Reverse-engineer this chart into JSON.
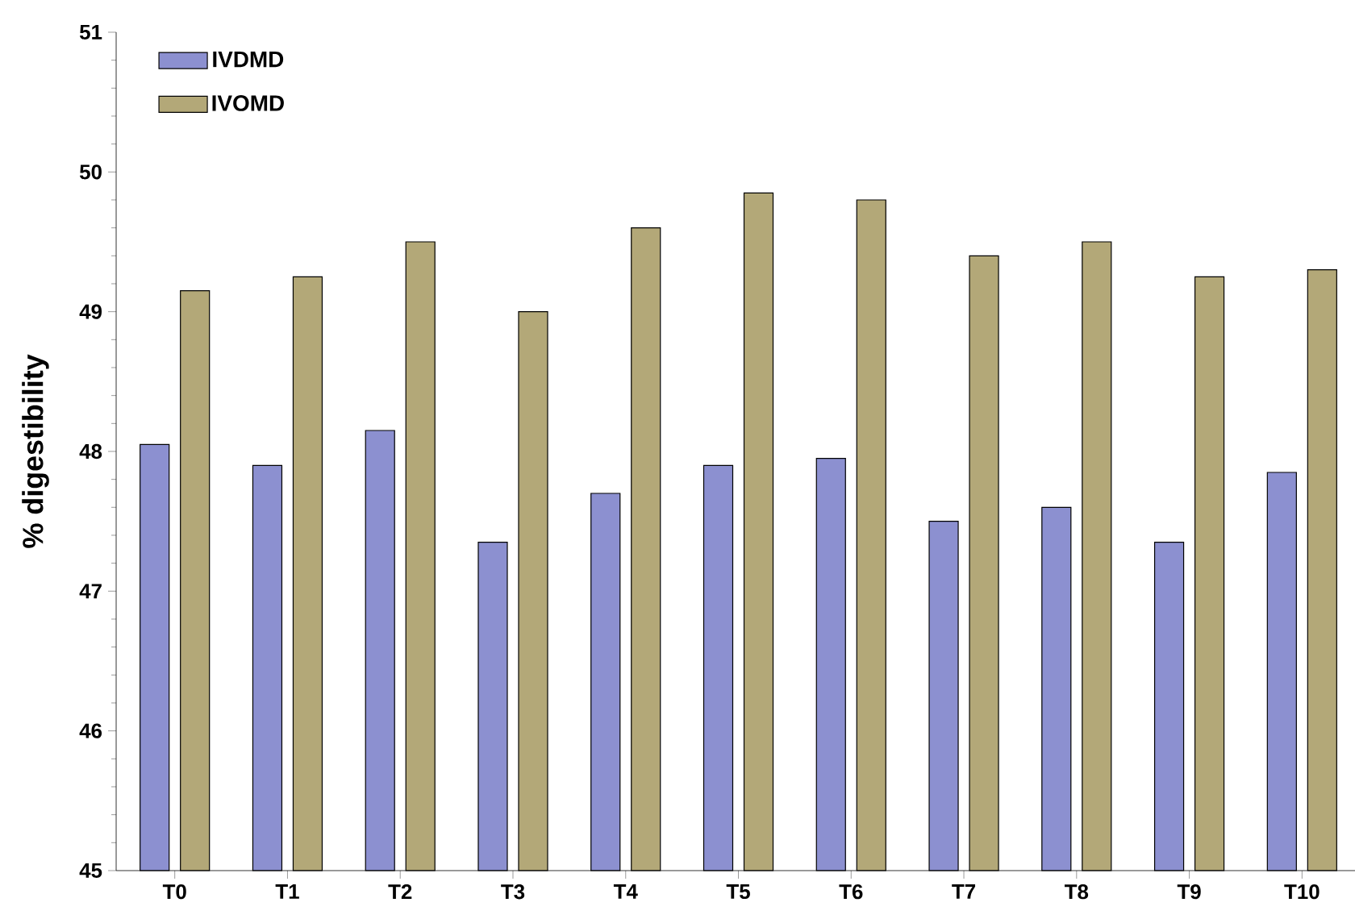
{
  "chart_data": {
    "type": "bar",
    "ylabel": "% digestibility",
    "categories": [
      "T0",
      "T1",
      "T2",
      "T3",
      "T4",
      "T5",
      "T6",
      "T7",
      "T8",
      "T9",
      "T10"
    ],
    "series": [
      {
        "name": "IVDMD",
        "color": "#8c90d0",
        "values": [
          48.05,
          47.9,
          48.15,
          47.35,
          47.7,
          47.9,
          47.95,
          47.5,
          47.6,
          47.35,
          47.85
        ]
      },
      {
        "name": "IVOMD",
        "color": "#b3a878",
        "values": [
          49.15,
          49.25,
          49.5,
          49.0,
          49.6,
          49.85,
          49.8,
          49.4,
          49.5,
          49.25,
          49.3
        ]
      }
    ],
    "ylim": [
      45,
      51
    ],
    "yticks": [
      45,
      46,
      47,
      48,
      49,
      50,
      51
    ],
    "grid": false,
    "legend": "top left"
  }
}
